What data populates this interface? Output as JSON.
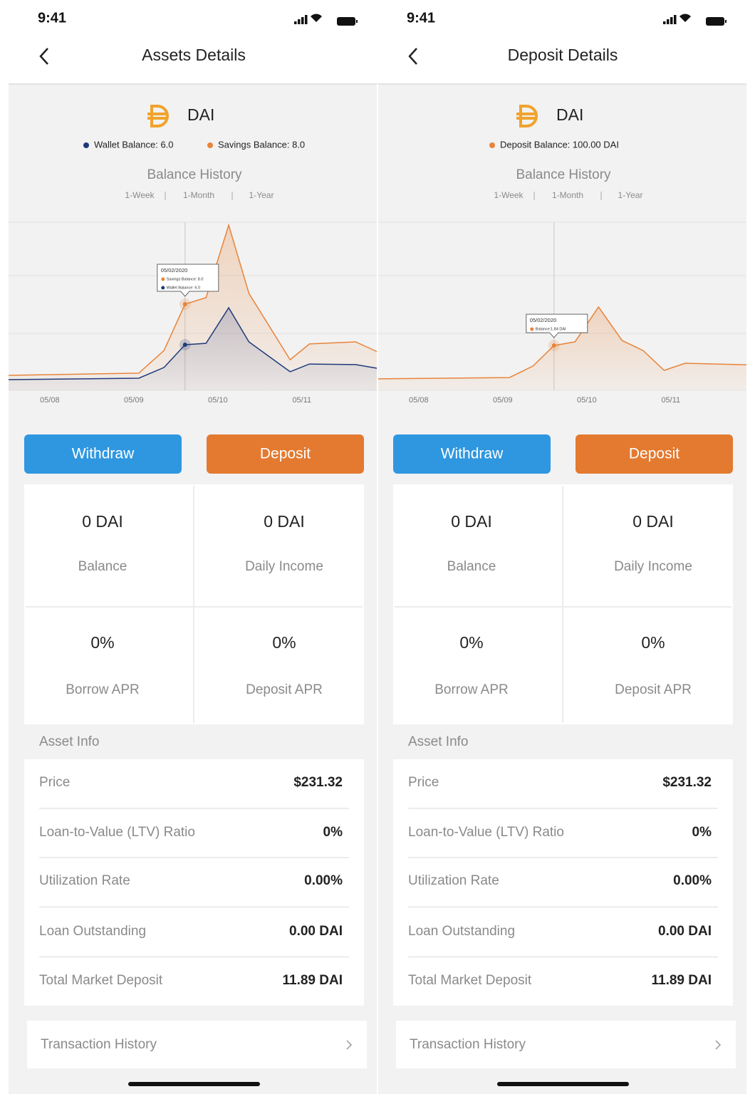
{
  "screens": [
    {
      "time": "9:41",
      "title": "Assets Details",
      "coin": "DAI",
      "legend": [
        {
          "text": "Wallet Balance: 6.0",
          "color": "#1f3a7a"
        },
        {
          "text": "Savings Balance: 8.0",
          "color": "#e8843a"
        }
      ],
      "chart_title": "Balance History",
      "ranges": [
        "1-Week",
        "1-Month",
        "1-Year"
      ],
      "buttons": [
        {
          "text": "Withdraw",
          "color": "#2f97e0"
        },
        {
          "text": "Deposit",
          "color": "#e37a30"
        }
      ],
      "stats": [
        {
          "value": "0 DAI",
          "label": "Balance"
        },
        {
          "value": "0 DAI",
          "label": "Daily Income"
        },
        {
          "value": "0%",
          "label": "Borrow APR"
        },
        {
          "value": "0%",
          "label": "Deposit APR"
        }
      ],
      "info_title": "Asset Info",
      "info": [
        [
          "Price",
          "$231.32"
        ],
        [
          "Loan-to-Value (LTV) Ratio",
          "0%"
        ],
        [
          "Utilization Rate",
          "0.00%"
        ],
        [
          "Loan Outstanding",
          "0.00 DAI"
        ],
        [
          "Total Market Deposit",
          "11.89 DAI"
        ]
      ],
      "history": "Transaction History"
    },
    {
      "time": "9:41",
      "title": "Deposit Details",
      "coin": "DAI",
      "legend": [
        {
          "text": "Deposit Balance: 100.00 DAI",
          "color": "#e8843a"
        }
      ],
      "chart_title": "Balance History",
      "ranges": [
        "1-Week",
        "1-Month",
        "1-Year"
      ],
      "buttons": [
        {
          "text": "Withdraw",
          "color": "#2f97e0"
        },
        {
          "text": "Deposit",
          "color": "#e37a30"
        }
      ],
      "stats": [
        {
          "value": "0 DAI",
          "label": "Balance"
        },
        {
          "value": "0 DAI",
          "label": "Daily Income"
        },
        {
          "value": "0%",
          "label": "Borrow APR"
        },
        {
          "value": "0%",
          "label": "Deposit APR"
        }
      ],
      "info_title": "Asset Info",
      "info": [
        [
          "Price",
          "$231.32"
        ],
        [
          "Loan-to-Value (LTV) Ratio",
          "0%"
        ],
        [
          "Utilization Rate",
          "0.00%"
        ],
        [
          "Loan Outstanding",
          "0.00 DAI"
        ],
        [
          "Total Market Deposit",
          "11.89 DAI"
        ]
      ],
      "history": "Transaction History"
    }
  ],
  "chart_data": [
    {
      "type": "line",
      "x": [
        -0.49,
        1.06,
        1.36,
        1.61,
        1.86,
        2.13,
        2.37,
        2.86,
        3.09,
        3.64,
        3.9
      ],
      "xlim": [
        -0.49,
        3.9
      ],
      "ylim": [
        4,
        12
      ],
      "xticks": [
        {
          "value": 0,
          "label": "05/08"
        },
        {
          "value": 1,
          "label": "05/09"
        },
        {
          "value": 2,
          "label": "05/10"
        },
        {
          "value": 3,
          "label": "05/11"
        }
      ],
      "series": [
        {
          "color": "#e8843a",
          "values": [
            4.49,
            4.6,
            5.72,
            8.0,
            8.32,
            11.89,
            8.53,
            5.26,
            6.04,
            6.14,
            5.65
          ]
        },
        {
          "color": "#1f3a7a",
          "values": [
            4.28,
            4.35,
            4.88,
            6.0,
            6.07,
            7.82,
            6.14,
            4.67,
            5.05,
            5.02,
            4.84
          ]
        }
      ],
      "tooltip": {
        "x": 1.61,
        "date": "05/02/2020",
        "lines": [
          {
            "text": "Savings Balance: 8.0",
            "color": "#e8843a"
          },
          {
            "text": "Wallet Balance: 6.0",
            "color": "#1f3a7a"
          }
        ]
      }
    },
    {
      "type": "line",
      "x": [
        -0.49,
        1.08,
        1.36,
        1.61,
        1.86,
        2.14,
        2.42,
        2.67,
        2.92,
        3.17,
        3.9
      ],
      "xlim": [
        -0.49,
        3.9
      ],
      "ylim": [
        0,
        7.5
      ],
      "xticks": [
        {
          "value": 0,
          "label": "05/08"
        },
        {
          "value": 1,
          "label": "05/09"
        },
        {
          "value": 2,
          "label": "05/10"
        },
        {
          "value": 3,
          "label": "05/11"
        }
      ],
      "series": [
        {
          "color": "#e8843a",
          "values": [
            0.3,
            0.36,
            0.89,
            1.84,
            2.01,
            3.62,
            2.07,
            1.61,
            0.69,
            1.02,
            0.95
          ]
        }
      ],
      "tooltip": {
        "x": 1.61,
        "date": "05/02/2020",
        "lines": [
          {
            "text": "Balance:1.84 DAI",
            "color": "#e8843a"
          }
        ]
      }
    }
  ]
}
